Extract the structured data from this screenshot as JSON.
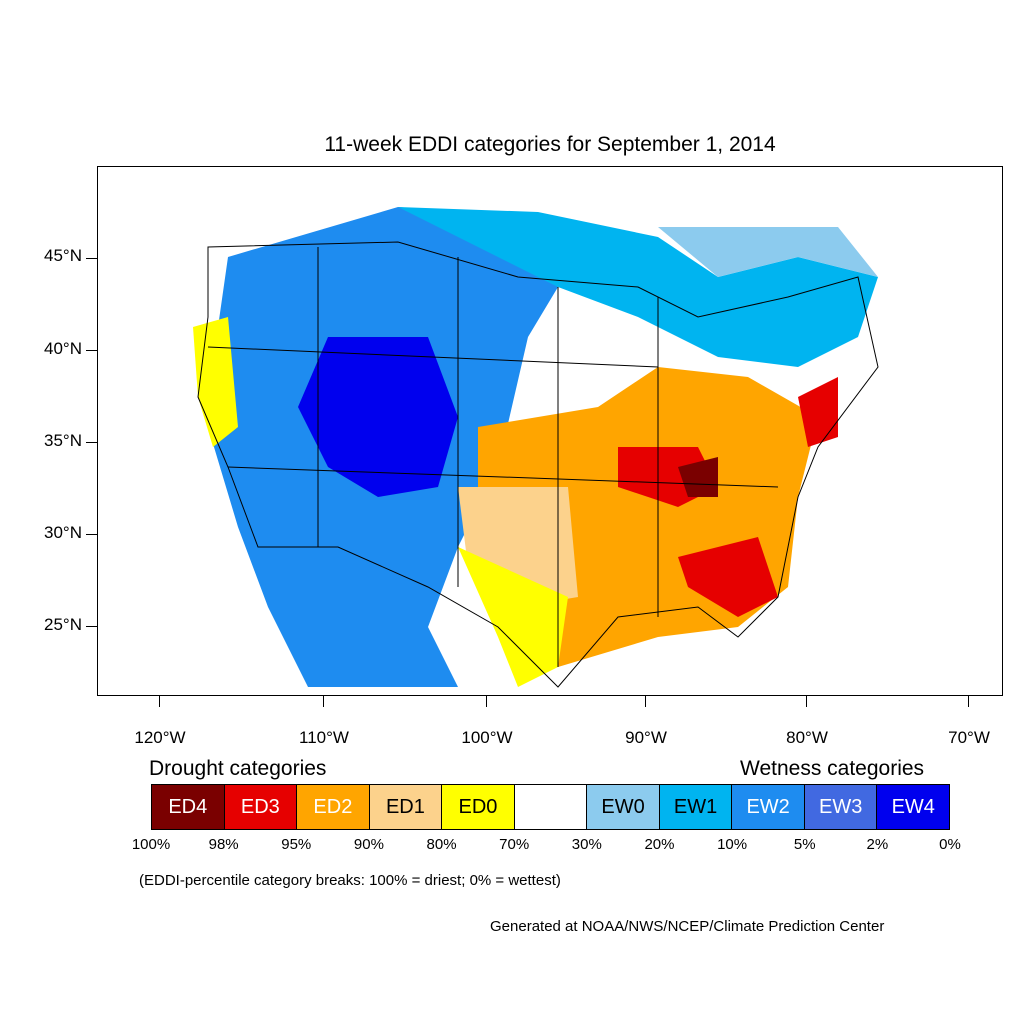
{
  "title": "11-week EDDI categories for September 1, 2014",
  "map": {
    "lat_ticks": [
      "45°N",
      "40°N",
      "35°N",
      "30°N",
      "25°N"
    ],
    "lon_ticks": [
      "120°W",
      "110°W",
      "100°W",
      "90°W",
      "80°W",
      "70°W"
    ]
  },
  "legend": {
    "drought_heading": "Drought categories",
    "wetness_heading": "Wetness categories",
    "categories": [
      {
        "label": "ED4",
        "color": "#7a0000",
        "text_color": "#ffffff"
      },
      {
        "label": "ED3",
        "color": "#e60000",
        "text_color": "#ffffff"
      },
      {
        "label": "ED2",
        "color": "#ffa500",
        "text_color": "#ffffff"
      },
      {
        "label": "ED1",
        "color": "#fcd28c",
        "text_color": "#000000"
      },
      {
        "label": "ED0",
        "color": "#ffff00",
        "text_color": "#000000"
      },
      {
        "label": "",
        "color": "#ffffff",
        "text_color": "#000000"
      },
      {
        "label": "EW0",
        "color": "#8ccbee",
        "text_color": "#000000"
      },
      {
        "label": "EW1",
        "color": "#00b4f0",
        "text_color": "#000000"
      },
      {
        "label": "EW2",
        "color": "#1e8cf0",
        "text_color": "#ffffff"
      },
      {
        "label": "EW3",
        "color": "#4169e1",
        "text_color": "#ffffff"
      },
      {
        "label": "EW4",
        "color": "#0000ee",
        "text_color": "#ffffff"
      }
    ],
    "percentiles": [
      "100%",
      "98%",
      "95%",
      "90%",
      "80%",
      "70%",
      "30%",
      "20%",
      "10%",
      "5%",
      "2%",
      "0%"
    ]
  },
  "note": "(EDDI-percentile category breaks: 100% = driest; 0% = wettest)",
  "credit": "Generated at NOAA/NWS/NCEP/Climate Prediction Center"
}
